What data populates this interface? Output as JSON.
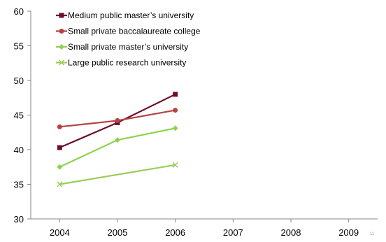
{
  "page_number": "11",
  "chart_data": {
    "type": "line",
    "title": "",
    "xlabel": "",
    "ylabel": "",
    "categories": [
      "2004",
      "2005",
      "2006",
      "2007",
      "2008",
      "2009"
    ],
    "ylim": [
      30,
      60
    ],
    "yticks": [
      "30",
      "35",
      "40",
      "45",
      "50",
      "55",
      "60"
    ],
    "grid": false,
    "legend_position": "top-left",
    "series": [
      {
        "name": "Medium public master’s university",
        "color": "#6b0f2a",
        "marker": "square",
        "values": [
          40.3,
          43.9,
          48.0,
          null,
          null,
          null
        ]
      },
      {
        "name": "Small private baccalaureate college",
        "color": "#b5433f",
        "marker": "circle",
        "values": [
          43.3,
          44.2,
          45.7,
          null,
          null,
          null
        ]
      },
      {
        "name": "Small private master’s university",
        "color": "#8fd14f",
        "marker": "diamond",
        "values": [
          37.5,
          41.4,
          43.1,
          null,
          null,
          null
        ]
      },
      {
        "name": "Large public research university",
        "color": "#9acd5a",
        "marker": "x",
        "values": [
          35.0,
          null,
          37.8,
          null,
          null,
          null
        ]
      }
    ]
  }
}
